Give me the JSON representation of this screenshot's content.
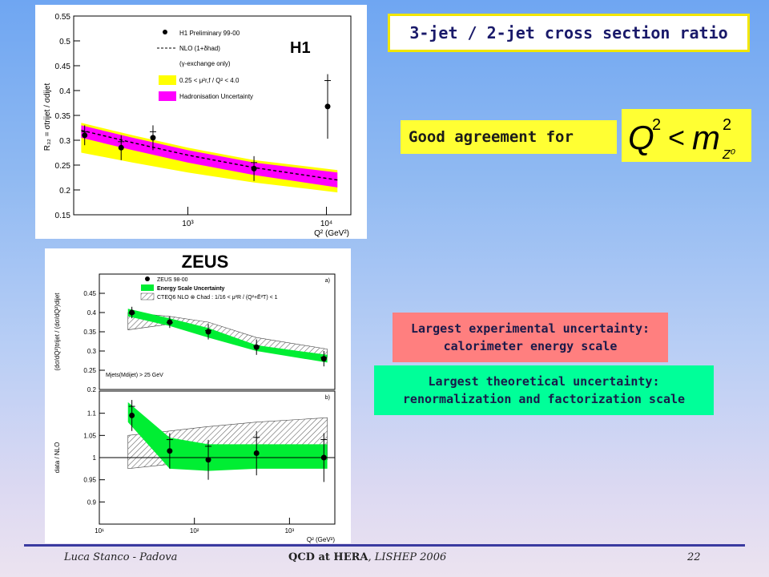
{
  "slide": {
    "title": "3-jet / 2-jet cross section ratio",
    "agreement_text": "Good agreement for",
    "formula": {
      "lhs": "Q",
      "lhs_exp": "2",
      "op": "<",
      "rhs": "m",
      "rhs_exp": "2",
      "rhs_sub": "Z⁰"
    },
    "experimental_note": [
      "Largest experimental uncertainty:",
      "calorimeter energy scale"
    ],
    "theoretical_note": [
      "Largest theoretical uncertainty:",
      "renormalization and factorization scale"
    ],
    "footer": {
      "author": "Luca Stanco - Padova",
      "event_bold": "QCD at HERA",
      "event_rest": ", LISHEP 2006",
      "page": "22"
    },
    "colors": {
      "title_border": "#f2e600",
      "agree_bg": "#ffff33",
      "exp_bg": "#ff7f7f",
      "theo_bg": "#00ff99"
    }
  },
  "chart_data": [
    {
      "type": "scatter",
      "experiment_label": "H1",
      "xlabel": "Q² (GeV²)",
      "ylabel": "R₃₂ = σtrijet / σdijet",
      "xscale": "log",
      "xlim": [
        150,
        15000
      ],
      "ylim": [
        0.15,
        0.55
      ],
      "yticks": [
        "0.15",
        "0.2",
        "0.25",
        "0.3",
        "0.35",
        "0.4",
        "0.45",
        "0.5",
        "0.55"
      ],
      "xticks": [
        "10³",
        "10⁴"
      ],
      "legend_placement": "top-right",
      "legend": [
        "H1 Preliminary 99-00",
        "NLO (1+δhad)",
        "(γ-exchange only)",
        "0.25 < μ²r,f / Q² < 4.0",
        "Hadronisation Uncertainty"
      ],
      "data_points": {
        "x": [
          180,
          330,
          560,
          3000,
          10200
        ],
        "y": [
          0.31,
          0.285,
          0.305,
          0.243,
          0.368
        ],
        "yerr": [
          0.02,
          0.025,
          0.025,
          0.025,
          0.065
        ]
      },
      "nlo_line": {
        "x": [
          170,
          400,
          1000,
          3000,
          12000
        ],
        "y": [
          0.32,
          0.295,
          0.27,
          0.245,
          0.22
        ]
      },
      "scale_band": {
        "x": [
          170,
          400,
          1000,
          3000,
          12000
        ],
        "low": [
          0.275,
          0.255,
          0.235,
          0.215,
          0.195
        ],
        "high": [
          0.335,
          0.31,
          0.285,
          0.26,
          0.24
        ]
      },
      "hadronisation_band": {
        "x": [
          170,
          400,
          1000,
          3000,
          12000
        ],
        "low": [
          0.305,
          0.28,
          0.255,
          0.23,
          0.205
        ],
        "high": [
          0.33,
          0.305,
          0.28,
          0.255,
          0.235
        ]
      },
      "colors": {
        "scale_band": "#ffff00",
        "hadronisation_band": "#ff00ff",
        "points": "#000000"
      }
    },
    {
      "type": "scatter",
      "experiment_label": "ZEUS",
      "xlabel": "Q² (GeV²)",
      "xscale": "log",
      "xlim": [
        10,
        3000
      ],
      "xticks": [
        "10¹",
        "10²",
        "10³"
      ],
      "legend": [
        "ZEUS 98-00",
        "Energy Scale Uncertainty",
        "CTEQ6 NLO ⊗ Chad : 1/16 < μ²R / (Q²+Ē²T) < 1"
      ],
      "annotation": "Mjets(Mdijet) > 25 GeV",
      "top_panel": {
        "label": "a)",
        "ylabel": "(dσ/dQ²)trijet / (dσ/dQ²)dijet",
        "ylim": [
          0.2,
          0.5
        ],
        "yticks": [
          "0.2",
          "0.25",
          "0.3",
          "0.35",
          "0.4",
          "0.45"
        ],
        "data_points": {
          "x": [
            22,
            55,
            140,
            450,
            2300
          ],
          "y": [
            0.4,
            0.375,
            0.35,
            0.31,
            0.28
          ],
          "yerr": [
            0.015,
            0.015,
            0.02,
            0.02,
            0.02
          ]
        },
        "energy_scale_band": {
          "x": [
            20,
            55,
            140,
            450,
            2500
          ],
          "low": [
            0.39,
            0.365,
            0.335,
            0.3,
            0.27
          ],
          "high": [
            0.41,
            0.385,
            0.36,
            0.315,
            0.29
          ]
        },
        "nlo_band": {
          "x": [
            20,
            55,
            140,
            450,
            2500
          ],
          "low": [
            0.355,
            0.37,
            0.355,
            0.31,
            0.285
          ],
          "high": [
            0.4,
            0.39,
            0.375,
            0.335,
            0.305
          ]
        }
      },
      "bottom_panel": {
        "label": "b)",
        "ylabel": "data / NLO",
        "ylim": [
          0.85,
          1.15
        ],
        "yticks": [
          "0.9",
          "0.95",
          "1",
          "1.05",
          "1.1"
        ],
        "reference_line": 1,
        "data_points": {
          "x": [
            22,
            55,
            140,
            450,
            2300
          ],
          "y": [
            1.095,
            1.015,
            0.995,
            1.01,
            1.0
          ],
          "yerr": [
            0.035,
            0.04,
            0.045,
            0.05,
            0.055
          ]
        },
        "energy_scale_band": {
          "x": [
            20,
            55,
            140,
            450,
            2500
          ],
          "low": [
            1.08,
            0.975,
            0.97,
            0.975,
            0.975
          ],
          "high": [
            1.125,
            1.045,
            1.03,
            1.03,
            1.03
          ]
        },
        "nlo_band": {
          "x": [
            20,
            55,
            140,
            450,
            2500
          ],
          "low": [
            0.975,
            0.985,
            0.99,
            0.99,
            0.995
          ],
          "high": [
            1.05,
            1.06,
            1.07,
            1.08,
            1.09
          ]
        }
      },
      "colors": {
        "energy_scale_band": "#00ee33",
        "points": "#000000"
      }
    }
  ]
}
